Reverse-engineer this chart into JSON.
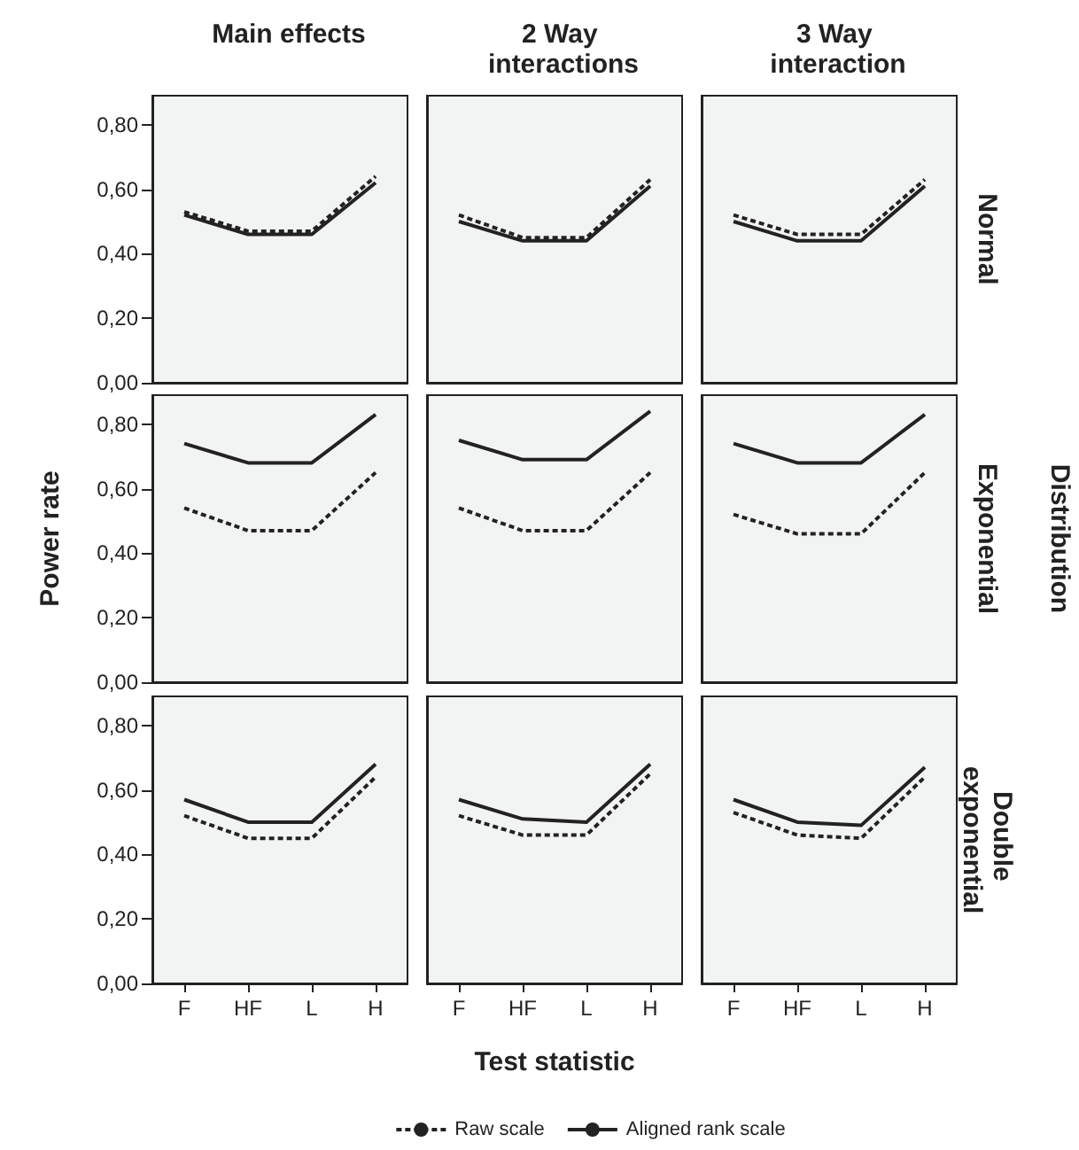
{
  "chart_data": [
    {
      "type": "line",
      "title": "Main effects",
      "categories": [
        "F",
        "HF",
        "L",
        "H"
      ],
      "ylim": [
        0,
        0.89
      ],
      "yticks": [
        {
          "value": 0,
          "label": "0,00"
        },
        {
          "value": 0.2,
          "label": "0,20"
        },
        {
          "value": 0.4,
          "label": "0,40"
        },
        {
          "value": 0.6,
          "label": "0,60"
        },
        {
          "value": 0.8,
          "label": "0,80"
        }
      ],
      "tick_labels": "y",
      "grid": false,
      "marker": "none",
      "series": [
        {
          "color": "#222222",
          "line_style": "dashed",
          "values": [
            0.53,
            0.47,
            0.47,
            0.64
          ]
        },
        {
          "color": "#222222",
          "line_style": "solid",
          "values": [
            0.52,
            0.46,
            0.46,
            0.62
          ]
        }
      ]
    },
    {
      "type": "line",
      "title": "2 Way interactions",
      "categories": [
        "F",
        "HF",
        "L",
        "H"
      ],
      "ylim": [
        0,
        0.89
      ],
      "tick_labels": false,
      "grid": false,
      "marker": "none",
      "series": [
        {
          "color": "#222222",
          "line_style": "dashed",
          "values": [
            0.52,
            0.45,
            0.45,
            0.63
          ]
        },
        {
          "color": "#222222",
          "line_style": "solid",
          "values": [
            0.5,
            0.44,
            0.44,
            0.61
          ]
        }
      ]
    },
    {
      "type": "line",
      "title": "3 Way interaction",
      "annotations": [
        "Normal"
      ],
      "categories": [
        "F",
        "HF",
        "L",
        "H"
      ],
      "ylim": [
        0,
        0.89
      ],
      "tick_labels": false,
      "grid": false,
      "marker": "none",
      "series": [
        {
          "color": "#222222",
          "line_style": "dashed",
          "values": [
            0.52,
            0.46,
            0.46,
            0.63
          ]
        },
        {
          "color": "#222222",
          "line_style": "solid",
          "values": [
            0.5,
            0.44,
            0.44,
            0.61
          ]
        }
      ]
    },
    {
      "type": "line",
      "ylabel": "Power rate",
      "categories": [
        "F",
        "HF",
        "L",
        "H"
      ],
      "ylim": [
        0,
        0.89
      ],
      "yticks": [
        {
          "value": 0,
          "label": "0,00"
        },
        {
          "value": 0.2,
          "label": "0,20"
        },
        {
          "value": 0.4,
          "label": "0,40"
        },
        {
          "value": 0.6,
          "label": "0,60"
        },
        {
          "value": 0.8,
          "label": "0,80"
        }
      ],
      "tick_labels": "y",
      "grid": false,
      "marker": "none",
      "series": [
        {
          "color": "#222222",
          "line_style": "dashed",
          "values": [
            0.54,
            0.47,
            0.47,
            0.65
          ]
        },
        {
          "color": "#222222",
          "line_style": "solid",
          "values": [
            0.74,
            0.68,
            0.68,
            0.83
          ]
        }
      ]
    },
    {
      "type": "line",
      "categories": [
        "F",
        "HF",
        "L",
        "H"
      ],
      "ylim": [
        0,
        0.89
      ],
      "tick_labels": false,
      "grid": false,
      "marker": "none",
      "series": [
        {
          "color": "#222222",
          "line_style": "dashed",
          "values": [
            0.54,
            0.47,
            0.47,
            0.65
          ]
        },
        {
          "color": "#222222",
          "line_style": "solid",
          "values": [
            0.75,
            0.69,
            0.69,
            0.84
          ]
        }
      ]
    },
    {
      "type": "line",
      "annotations": [
        "Exponential",
        "Distribution"
      ],
      "categories": [
        "F",
        "HF",
        "L",
        "H"
      ],
      "ylim": [
        0,
        0.89
      ],
      "tick_labels": false,
      "grid": false,
      "marker": "none",
      "series": [
        {
          "color": "#222222",
          "line_style": "dashed",
          "values": [
            0.52,
            0.46,
            0.46,
            0.65
          ]
        },
        {
          "color": "#222222",
          "line_style": "solid",
          "values": [
            0.74,
            0.68,
            0.68,
            0.83
          ]
        }
      ]
    },
    {
      "type": "line",
      "categories": [
        "F",
        "HF",
        "L",
        "H"
      ],
      "ylim": [
        0,
        0.89
      ],
      "yticks": [
        {
          "value": 0,
          "label": "0,00"
        },
        {
          "value": 0.2,
          "label": "0,20"
        },
        {
          "value": 0.4,
          "label": "0,40"
        },
        {
          "value": 0.6,
          "label": "0,60"
        },
        {
          "value": 0.8,
          "label": "0,80"
        }
      ],
      "grid": false,
      "marker": "none",
      "series": [
        {
          "color": "#222222",
          "line_style": "dashed",
          "values": [
            0.52,
            0.45,
            0.45,
            0.64
          ]
        },
        {
          "color": "#222222",
          "line_style": "solid",
          "values": [
            0.57,
            0.5,
            0.5,
            0.68
          ]
        }
      ]
    },
    {
      "type": "line",
      "xlabel": "Test statistic",
      "legend": "bottom",
      "categories": [
        "F",
        "HF",
        "L",
        "H"
      ],
      "ylim": [
        0,
        0.89
      ],
      "tick_labels": "x",
      "grid": false,
      "marker": "none",
      "series": [
        {
          "name": "Raw scale",
          "color": "#222222",
          "line_style": "dashed",
          "values": [
            0.52,
            0.46,
            0.46,
            0.65
          ]
        },
        {
          "name": "Aligned rank scale",
          "color": "#222222",
          "line_style": "solid",
          "values": [
            0.57,
            0.51,
            0.5,
            0.68
          ]
        }
      ]
    },
    {
      "type": "line",
      "annotations": [
        "Double exponential"
      ],
      "categories": [
        "F",
        "HF",
        "L",
        "H"
      ],
      "ylim": [
        0,
        0.89
      ],
      "tick_labels": "x",
      "grid": false,
      "marker": "none",
      "series": [
        {
          "color": "#222222",
          "line_style": "dashed",
          "values": [
            0.53,
            0.46,
            0.45,
            0.64
          ]
        },
        {
          "color": "#222222",
          "line_style": "solid",
          "values": [
            0.57,
            0.5,
            0.49,
            0.67
          ]
        }
      ]
    }
  ]
}
